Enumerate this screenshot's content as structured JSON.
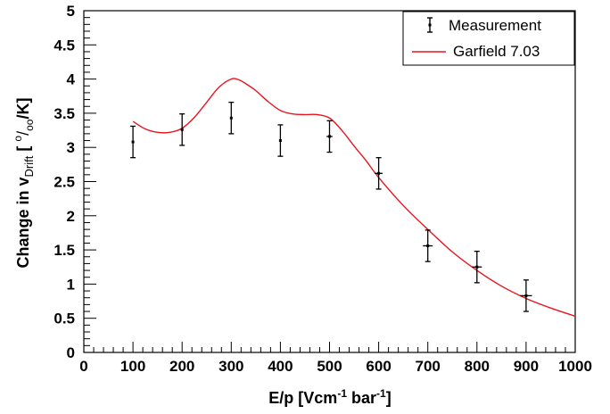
{
  "chart_data": {
    "type": "line",
    "xlabel": {
      "main": "E/p [Vcm",
      "sup1": "-1",
      "mid": " bar",
      "sup2": "-1",
      "end": "]"
    },
    "ylabel": {
      "pre": "Change in v",
      "sub": "Drift",
      "mid": " [ ",
      "sup": "o",
      "slash": "/",
      "sub2": "oo",
      "post": "/K]"
    },
    "xlim": [
      0,
      1000
    ],
    "ylim": [
      0,
      5
    ],
    "x_ticks": [
      0,
      100,
      200,
      300,
      400,
      500,
      600,
      700,
      800,
      900,
      1000
    ],
    "y_ticks": [
      0,
      0.5,
      1,
      1.5,
      2,
      2.5,
      3,
      3.5,
      4,
      4.5,
      5
    ],
    "y_tick_labels": [
      "0",
      "0.5",
      "1",
      "1.5",
      "2",
      "2.5",
      "3",
      "3.5",
      "4",
      "4.5",
      "5"
    ],
    "legend_position": "top-right",
    "series": [
      {
        "name": "Measurement",
        "kind": "points-with-error-bars",
        "color": "#000000",
        "x": [
          100,
          200,
          300,
          400,
          500,
          600,
          700,
          800,
          900
        ],
        "y": [
          3.08,
          3.26,
          3.43,
          3.1,
          3.16,
          2.62,
          1.56,
          1.25,
          0.83
        ],
        "y_err": [
          0.23,
          0.23,
          0.23,
          0.23,
          0.23,
          0.23,
          0.23,
          0.23,
          0.23
        ],
        "x_err": [
          0,
          0,
          0,
          0,
          6,
          8,
          10,
          10,
          12
        ]
      },
      {
        "name": "Garfield 7.03",
        "kind": "line",
        "color": "#e8141d",
        "x": [
          100,
          125,
          150,
          175,
          200,
          225,
          250,
          275,
          300,
          315,
          330,
          350,
          375,
          400,
          425,
          450,
          475,
          500,
          525,
          550,
          575,
          600,
          650,
          700,
          750,
          800,
          850,
          900,
          950,
          1000
        ],
        "y": [
          3.38,
          3.27,
          3.22,
          3.22,
          3.28,
          3.44,
          3.66,
          3.88,
          4.0,
          3.99,
          3.93,
          3.83,
          3.67,
          3.54,
          3.49,
          3.48,
          3.48,
          3.43,
          3.25,
          3.02,
          2.8,
          2.56,
          2.15,
          1.8,
          1.47,
          1.2,
          0.97,
          0.79,
          0.65,
          0.53
        ]
      }
    ]
  }
}
